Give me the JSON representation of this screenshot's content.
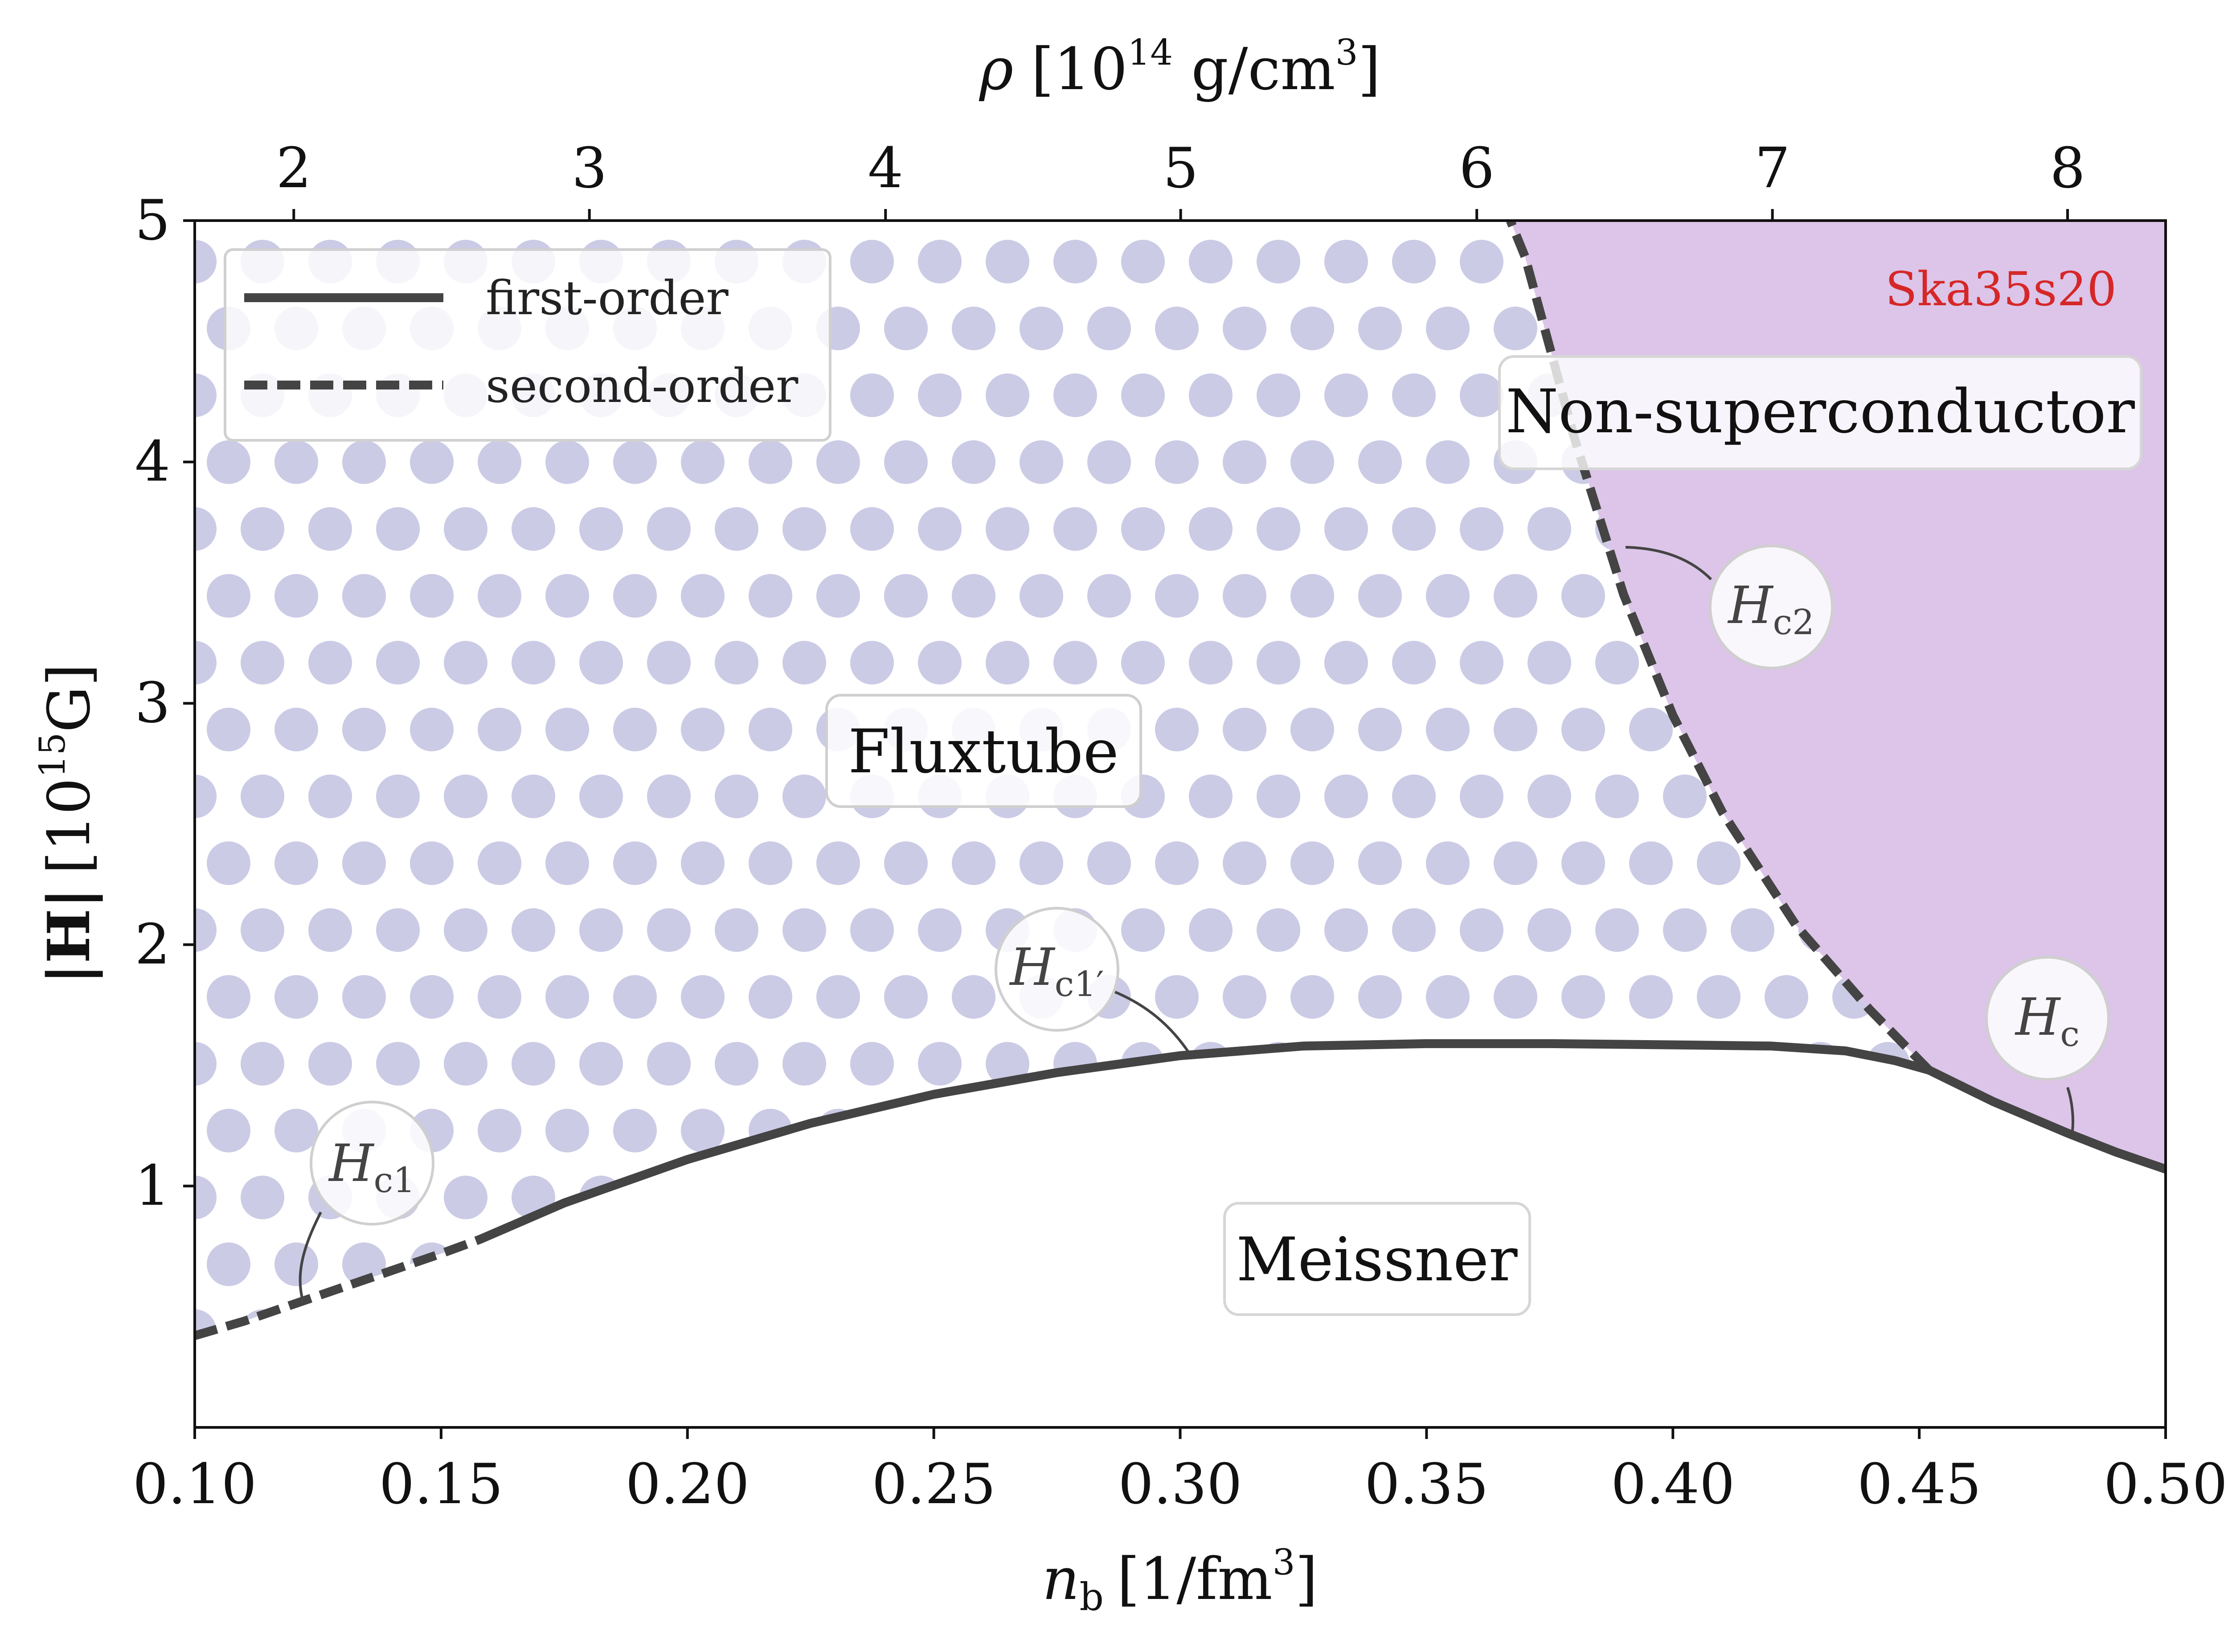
{
  "chart_data": {
    "type": "line",
    "x_axis": {
      "label_main": "n",
      "label_sub": "b",
      "label_unit": "[1/fm",
      "label_unit_sup": "3",
      "label_close": "]",
      "range": [
        0.1,
        0.5
      ],
      "ticks": [
        0.1,
        0.15,
        0.2,
        0.25,
        0.3,
        0.35,
        0.4,
        0.45,
        0.5
      ],
      "tick_labels": [
        "0.10",
        "0.15",
        "0.20",
        "0.25",
        "0.30",
        "0.35",
        "0.40",
        "0.45",
        "0.50"
      ]
    },
    "top_axis": {
      "label_main": "ρ",
      "label_unit": "[10",
      "label_unit_sup": "14",
      "label_unit_rest": " g/cm",
      "label_unit_sup2": "3",
      "label_close": "]",
      "ticks_nb": [
        0.1201,
        0.1801,
        0.2402,
        0.3001,
        0.3602,
        0.4202,
        0.4801
      ],
      "tick_labels": [
        "2",
        "3",
        "4",
        "5",
        "6",
        "7",
        "8"
      ]
    },
    "y_axis": {
      "label_main": "|H|",
      "label_unit": "[10",
      "label_unit_sup": "15",
      "label_unit_rest": "G]",
      "range": [
        0,
        5
      ],
      "ticks": [
        1,
        2,
        3,
        4,
        5
      ],
      "tick_labels": [
        "1",
        "2",
        "3",
        "4",
        "5"
      ]
    },
    "grid": false,
    "legend_position": "top-left",
    "legend": [
      {
        "label": "first-order",
        "style": "solid"
      },
      {
        "label": "second-order",
        "style": "dashed"
      }
    ],
    "tag": "Ska35s20",
    "tag_color": "#d62728",
    "line_color": "#444444",
    "dot_color": "#cbcbe6",
    "nonsc_fill": "#dcc5e8",
    "series": [
      {
        "name": "H_c1 (second-order)",
        "style": "dashed",
        "x": [
          0.1,
          0.11,
          0.12,
          0.13,
          0.14,
          0.15,
          0.158
        ],
        "y": [
          0.38,
          0.44,
          0.51,
          0.58,
          0.65,
          0.72,
          0.78
        ]
      },
      {
        "name": "H_c1' (first-order)",
        "style": "solid",
        "x": [
          0.158,
          0.175,
          0.2,
          0.225,
          0.25,
          0.275,
          0.3,
          0.325,
          0.35,
          0.375,
          0.4,
          0.42,
          0.435,
          0.445,
          0.452
        ],
        "y": [
          0.78,
          0.93,
          1.11,
          1.26,
          1.38,
          1.47,
          1.54,
          1.58,
          1.59,
          1.59,
          1.585,
          1.58,
          1.56,
          1.52,
          1.48
        ]
      },
      {
        "name": "H_c (first-order)",
        "style": "solid",
        "x": [
          0.452,
          0.465,
          0.48,
          0.49,
          0.5
        ],
        "y": [
          1.48,
          1.35,
          1.22,
          1.14,
          1.07
        ]
      },
      {
        "name": "H_c2 (second-order)",
        "style": "dashed",
        "x": [
          0.452,
          0.44,
          0.425,
          0.41,
          0.4,
          0.39,
          0.38,
          0.37,
          0.367
        ],
        "y": [
          1.48,
          1.73,
          2.08,
          2.55,
          2.95,
          3.45,
          4.1,
          4.85,
          5.0
        ]
      }
    ],
    "regions": [
      {
        "key": "fluxtube",
        "label": "Fluxtube"
      },
      {
        "key": "nonsc",
        "label": "Non-superconductor"
      },
      {
        "key": "meissner",
        "label": "Meissner"
      }
    ],
    "callouts": {
      "hc1": {
        "main": "H",
        "sub": "c1"
      },
      "hc1p": {
        "main": "H",
        "sub": "c1′"
      },
      "hc2": {
        "main": "H",
        "sub": "c2"
      },
      "hc": {
        "main": "H",
        "sub": "c"
      }
    }
  }
}
